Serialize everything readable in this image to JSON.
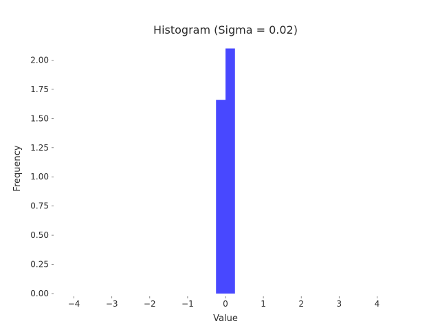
{
  "chart_data": {
    "type": "bar",
    "title": "Histogram (Sigma = 0.02)",
    "xlabel": "Value",
    "ylabel": "Frequency",
    "xlim": [
      -4.5,
      4.5
    ],
    "ylim": [
      0,
      2.15
    ],
    "x_ticks": [
      -4,
      -3,
      -2,
      -1,
      0,
      1,
      2,
      3,
      4
    ],
    "x_tick_labels": [
      "−4",
      "−3",
      "−2",
      "−1",
      "0",
      "1",
      "2",
      "3",
      "4"
    ],
    "y_ticks": [
      0,
      0.25,
      0.5,
      0.75,
      1.0,
      1.25,
      1.5,
      1.75,
      2.0
    ],
    "y_tick_labels": [
      "0.00",
      "0.25",
      "0.50",
      "0.75",
      "1.00",
      "1.25",
      "1.50",
      "1.75",
      "2.00"
    ],
    "bins": [
      {
        "x0": -0.25,
        "x1": 0.0,
        "value": 1.66
      },
      {
        "x0": 0.0,
        "x1": 0.25,
        "value": 2.1
      }
    ],
    "bar_color": "#4848ff",
    "grid": false,
    "legend": "none"
  }
}
